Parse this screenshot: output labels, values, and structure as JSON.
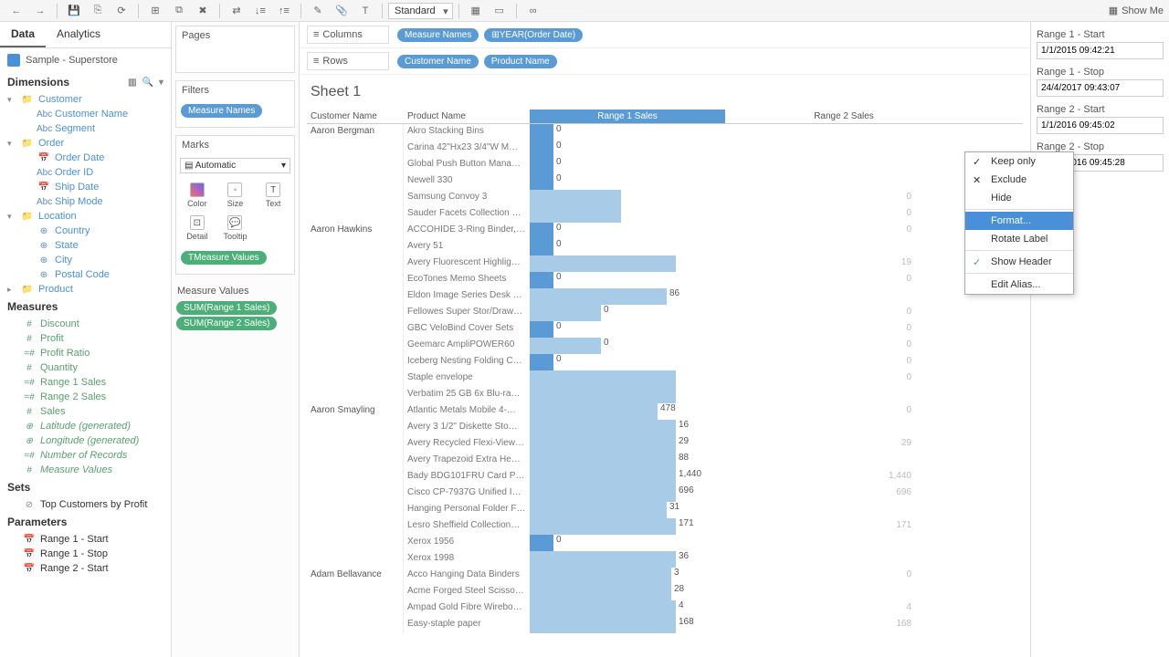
{
  "toolbar": {
    "fit": "Standard",
    "showMe": "Show Me"
  },
  "tabs": {
    "data": "Data",
    "analytics": "Analytics"
  },
  "datasource": "Sample - Superstore",
  "sections": {
    "dimensions": "Dimensions",
    "measures": "Measures",
    "sets": "Sets",
    "parameters": "Parameters"
  },
  "dims": {
    "customer": "Customer",
    "customerName": "Customer Name",
    "segment": "Segment",
    "order": "Order",
    "orderDate": "Order Date",
    "orderId": "Order ID",
    "shipDate": "Ship Date",
    "shipMode": "Ship Mode",
    "location": "Location",
    "country": "Country",
    "state": "State",
    "city": "City",
    "postal": "Postal Code",
    "product": "Product"
  },
  "meas": {
    "discount": "Discount",
    "profit": "Profit",
    "profitRatio": "Profit Ratio",
    "quantity": "Quantity",
    "r1": "Range 1 Sales",
    "r2": "Range 2 Sales",
    "sales": "Sales",
    "lat": "Latitude (generated)",
    "lon": "Longitude (generated)",
    "recs": "Number of Records",
    "mv": "Measure Values"
  },
  "sets": {
    "top": "Top Customers by Profit"
  },
  "params": {
    "r1s": "Range 1 - Start",
    "r1e": "Range 1 - Stop",
    "r2s": "Range 2 - Start"
  },
  "shelves": {
    "pages": "Pages",
    "filters": "Filters",
    "marks": "Marks",
    "auto": "Automatic",
    "color": "Color",
    "size": "Size",
    "text": "Text",
    "detail": "Detail",
    "tooltip": "Tooltip",
    "measureNames": "Measure Names",
    "measureValues": "Measure Values",
    "mvTitle": "Measure Values",
    "sum1": "SUM(Range 1 Sales)",
    "sum2": "SUM(Range 2 Sales)",
    "columns": "Columns",
    "rows": "Rows",
    "year": "YEAR(Order Date)",
    "custName": "Customer Name",
    "prodName": "Product Name"
  },
  "sheet": {
    "title": "Sheet 1",
    "hCust": "Customer Name",
    "hProd": "Product Name",
    "hR1": "Range 1 Sales",
    "hR2": "Range 2 Sales"
  },
  "ctx": {
    "keep": "Keep only",
    "exclude": "Exclude",
    "hide": "Hide",
    "format": "Format...",
    "rotate": "Rotate Label",
    "showHeader": "Show Header",
    "editAlias": "Edit Alias..."
  },
  "rightParams": [
    {
      "label": "Range 1 - Start",
      "value": "1/1/2015 09:42:21"
    },
    {
      "label": "Range 1 - Stop",
      "value": "24/4/2017 09:43:07"
    },
    {
      "label": "Range 2 - Start",
      "value": "1/1/2016 09:45:02"
    },
    {
      "label": "Range 2 - Stop",
      "value": "31/12/2016 09:45:28"
    }
  ],
  "rows": [
    {
      "cust": "Aaron Bergman",
      "prod": "Akro Stacking Bins",
      "v1": "0",
      "w1": 26,
      "hl": true,
      "r2": ""
    },
    {
      "cust": "",
      "prod": "Carina 42\"Hx23 3/4\"W M…",
      "v1": "0",
      "w1": 26,
      "hl": true,
      "r2": ""
    },
    {
      "cust": "",
      "prod": "Global Push Button Mana…",
      "v1": "0",
      "w1": 26,
      "hl": true,
      "r2": ""
    },
    {
      "cust": "",
      "prod": "Newell 330",
      "v1": "0",
      "w1": 26,
      "hl": true,
      "r2": ""
    },
    {
      "cust": "",
      "prod": "Samsung Convoy 3",
      "v1": "",
      "w1": 100,
      "hl": false,
      "r2": "0"
    },
    {
      "cust": "",
      "prod": "Sauder Facets Collection L…",
      "v1": "",
      "w1": 100,
      "hl": false,
      "r2": "0"
    },
    {
      "cust": "Aaron Hawkins",
      "prod": "ACCOHIDE 3-Ring Binder, …",
      "v1": "0",
      "w1": 26,
      "hl": true,
      "r2": "0"
    },
    {
      "cust": "",
      "prod": "Avery 51",
      "v1": "0",
      "w1": 26,
      "hl": true,
      "r2": ""
    },
    {
      "cust": "",
      "prod": "Avery Fluorescent Highlig…",
      "v1": "",
      "w1": 160,
      "hl": false,
      "r2": "19"
    },
    {
      "cust": "",
      "prod": "EcoTones Memo Sheets",
      "v1": "0",
      "w1": 26,
      "hl": true,
      "r2": "0"
    },
    {
      "cust": "",
      "prod": "Eldon Image Series Desk …",
      "v1": "86",
      "w1": 150,
      "hl": false,
      "r2": ""
    },
    {
      "cust": "",
      "prod": "Fellowes Super Stor/Draw…",
      "v1": "0",
      "w1": 78,
      "hl": false,
      "r2": "0"
    },
    {
      "cust": "",
      "prod": "GBC VeloBind Cover Sets",
      "v1": "0",
      "w1": 26,
      "hl": true,
      "r2": "0"
    },
    {
      "cust": "",
      "prod": "Geemarc AmpliPOWER60",
      "v1": "0",
      "w1": 78,
      "hl": false,
      "r2": "0"
    },
    {
      "cust": "",
      "prod": "Iceberg Nesting Folding C…",
      "v1": "0",
      "w1": 26,
      "hl": true,
      "r2": "0"
    },
    {
      "cust": "",
      "prod": "Staple envelope",
      "v1": "",
      "w1": 160,
      "hl": false,
      "r2": "0"
    },
    {
      "cust": "",
      "prod": "Verbatim 25 GB 6x Blu-ra…",
      "v1": "",
      "w1": 160,
      "hl": false,
      "r2": ""
    },
    {
      "cust": "Aaron Smayling",
      "prod": "Atlantic Metals Mobile 4-…",
      "v1": "478",
      "w1": 140,
      "hl": false,
      "r2": "0"
    },
    {
      "cust": "",
      "prod": "Avery 3 1/2\" Diskette Sto…",
      "v1": "16",
      "w1": 160,
      "hl": false,
      "r2": ""
    },
    {
      "cust": "",
      "prod": "Avery Recycled Flexi-View…",
      "v1": "29",
      "w1": 160,
      "hl": false,
      "r2": "29"
    },
    {
      "cust": "",
      "prod": "Avery Trapezoid Extra He…",
      "v1": "88",
      "w1": 160,
      "hl": false,
      "r2": ""
    },
    {
      "cust": "",
      "prod": "Bady BDG101FRU Card Pr…",
      "v1": "1,440",
      "w1": 160,
      "hl": false,
      "r2": "1,440"
    },
    {
      "cust": "",
      "prod": "Cisco CP-7937G Unified IP…",
      "v1": "696",
      "w1": 160,
      "hl": false,
      "r2": "696"
    },
    {
      "cust": "",
      "prod": "Hanging Personal Folder F…",
      "v1": "31",
      "w1": 150,
      "hl": false,
      "r2": ""
    },
    {
      "cust": "",
      "prod": "Lesro Sheffield Collection…",
      "v1": "171",
      "w1": 160,
      "hl": false,
      "r2": "171"
    },
    {
      "cust": "",
      "prod": "Xerox 1956",
      "v1": "0",
      "w1": 26,
      "hl": true,
      "r2": ""
    },
    {
      "cust": "",
      "prod": "Xerox 1998",
      "v1": "36",
      "w1": 160,
      "hl": false,
      "r2": ""
    },
    {
      "cust": "Adam Bellavance",
      "prod": "Acco Hanging Data Binders",
      "v1": "3",
      "w1": 155,
      "hl": false,
      "r2": "0"
    },
    {
      "cust": "",
      "prod": "Acme Forged Steel Scisso…",
      "v1": "28",
      "w1": 155,
      "hl": false,
      "r2": ""
    },
    {
      "cust": "",
      "prod": "Ampad Gold Fibre Wirebo…",
      "v1": "4",
      "w1": 160,
      "hl": false,
      "r2": "4"
    },
    {
      "cust": "",
      "prod": "Easy-staple paper",
      "v1": "168",
      "w1": 160,
      "hl": false,
      "r2": "168"
    }
  ],
  "colors": {
    "pillBlue": "#5b9bd5",
    "pillGreen": "#4caf7a",
    "barLight": "#a8cce8",
    "barDark": "#5b9bd5"
  }
}
